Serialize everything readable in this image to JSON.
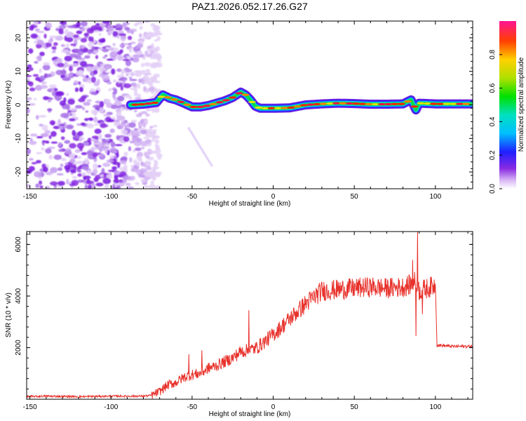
{
  "title": "PAZ1.2026.052.17.26.G27",
  "colors": {
    "snr_line": "#e8312b",
    "axes": "#000000",
    "background": "#ffffff"
  },
  "chart_data": [
    {
      "type": "heatmap",
      "name": "spectrogram",
      "xlabel": "Height of straight line (km)",
      "ylabel": "Frequency (Hz)",
      "xlim": [
        -152,
        123
      ],
      "ylim": [
        -25,
        25
      ],
      "xticks": [
        -150,
        -100,
        -50,
        0,
        50,
        100
      ],
      "yticks": [
        -20,
        -10,
        0,
        10,
        20
      ],
      "noise_region_x": [
        -152,
        -70
      ],
      "ridge": {
        "x": [
          -88,
          -80,
          -72,
          -68,
          -64,
          -60,
          -55,
          -50,
          -45,
          -40,
          -35,
          -30,
          -25,
          -20,
          -17,
          -14,
          -11,
          -8,
          -5,
          0,
          10,
          20,
          30,
          40,
          50,
          60,
          70,
          80,
          85,
          88,
          90,
          100,
          110,
          123
        ],
        "y": [
          0,
          0.2,
          0.7,
          3,
          2,
          1.5,
          0.5,
          -0.6,
          -0.6,
          -0.2,
          0.5,
          1.2,
          2.2,
          3.8,
          3,
          1.5,
          -0.4,
          -1,
          -1,
          -1,
          -0.9,
          0,
          0.3,
          0.5,
          0.4,
          0.2,
          0.2,
          0.3,
          1.5,
          -1.5,
          0.5,
          0.3,
          0.3,
          0.3
        ]
      },
      "colorbar": {
        "label": "Normalized spectral amplitude",
        "range": [
          0,
          1
        ],
        "ticks": [
          "0.0",
          "0.2",
          "0.4",
          "0.6",
          "0.8"
        ]
      }
    },
    {
      "type": "line",
      "name": "snr",
      "xlabel": "Height of straight line (km)",
      "ylabel": "SNR (10 * v/v)",
      "xlim": [
        -152,
        123
      ],
      "ylim": [
        0,
        6500
      ],
      "xticks": [
        -150,
        -100,
        -50,
        0,
        50,
        100
      ],
      "yticks": [
        2000,
        4000,
        6000
      ],
      "series": [
        {
          "name": "SNR",
          "x": [
            -152,
            -140,
            -120,
            -100,
            -80,
            -75,
            -70,
            -65,
            -60,
            -55,
            -50,
            -45,
            -40,
            -35,
            -30,
            -25,
            -20,
            -15,
            -10,
            -5,
            0,
            5,
            10,
            15,
            20,
            25,
            30,
            40,
            50,
            60,
            70,
            80,
            85,
            88,
            90,
            95,
            99,
            100,
            101,
            110,
            123
          ],
          "y": [
            100,
            120,
            100,
            120,
            120,
            150,
            300,
            550,
            650,
            850,
            950,
            1000,
            1200,
            1300,
            1450,
            1600,
            1850,
            1900,
            2000,
            2250,
            2500,
            2800,
            3100,
            3400,
            3700,
            3950,
            4200,
            4250,
            4300,
            4350,
            4300,
            4350,
            4450,
            4600,
            4200,
            4300,
            4400,
            4450,
            2100,
            2050,
            2050
          ],
          "spikes": [
            {
              "x": -52,
              "y": 1750
            },
            {
              "x": -44,
              "y": 1900
            },
            {
              "x": -15,
              "y": 3450
            },
            {
              "x": 86,
              "y": 5400
            },
            {
              "x": 88,
              "y": 2450
            },
            {
              "x": 89,
              "y": 6500
            },
            {
              "x": 92,
              "y": 3300
            }
          ]
        }
      ]
    }
  ]
}
